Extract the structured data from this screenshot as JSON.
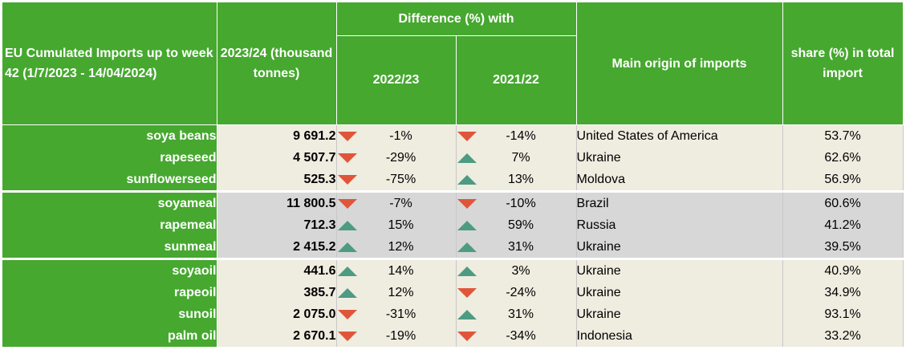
{
  "header": {
    "title": "EU Cumulated Imports up to week 42 (1/7/2023 - 14/04/2024)",
    "volume": "2023/24 (thousand tonnes)",
    "difference": "Difference (%) with",
    "prev1": "2022/23",
    "prev2": "2021/22",
    "origin": "Main origin of imports",
    "share": "share (%) in total import"
  },
  "colors": {
    "header_green": "#46a82f",
    "down": "#e0553a",
    "up": "#4d9b82"
  },
  "rows": [
    {
      "product": "soya beans",
      "volume": "9 691.2",
      "d1": "-1%",
      "d1_dir": "down",
      "d2": "-14%",
      "d2_dir": "down",
      "origin": "United States of America",
      "share": "53.7%"
    },
    {
      "product": "rapeseed",
      "volume": "4 507.7",
      "d1": "-29%",
      "d1_dir": "down",
      "d2": "7%",
      "d2_dir": "up",
      "origin": "Ukraine",
      "share": "62.6%"
    },
    {
      "product": "sunflowerseed",
      "volume": "525.3",
      "d1": "-75%",
      "d1_dir": "down",
      "d2": "13%",
      "d2_dir": "up",
      "origin": "Moldova",
      "share": "56.9%"
    },
    {
      "product": "soyameal",
      "volume": "11 800.5",
      "d1": "-7%",
      "d1_dir": "down",
      "d2": "-10%",
      "d2_dir": "down",
      "origin": "Brazil",
      "share": "60.6%"
    },
    {
      "product": "rapemeal",
      "volume": "712.3",
      "d1": "15%",
      "d1_dir": "up",
      "d2": "59%",
      "d2_dir": "up",
      "origin": "Russia",
      "share": "41.2%"
    },
    {
      "product": "sunmeal",
      "volume": "2 415.2",
      "d1": "12%",
      "d1_dir": "up",
      "d2": "31%",
      "d2_dir": "up",
      "origin": "Ukraine",
      "share": "39.5%"
    },
    {
      "product": "soyaoil",
      "volume": "441.6",
      "d1": "14%",
      "d1_dir": "up",
      "d2": "3%",
      "d2_dir": "up",
      "origin": "Ukraine",
      "share": "40.9%"
    },
    {
      "product": "rapeoil",
      "volume": "385.7",
      "d1": "12%",
      "d1_dir": "up",
      "d2": "-24%",
      "d2_dir": "down",
      "origin": "Ukraine",
      "share": "34.9%"
    },
    {
      "product": "sunoil",
      "volume": "2 075.0",
      "d1": "-31%",
      "d1_dir": "down",
      "d2": "31%",
      "d2_dir": "up",
      "origin": "Ukraine",
      "share": "93.1%"
    },
    {
      "product": "palm oil",
      "volume": "2 670.1",
      "d1": "-19%",
      "d1_dir": "down",
      "d2": "-34%",
      "d2_dir": "down",
      "origin": "Indonesia",
      "share": "33.2%"
    }
  ]
}
